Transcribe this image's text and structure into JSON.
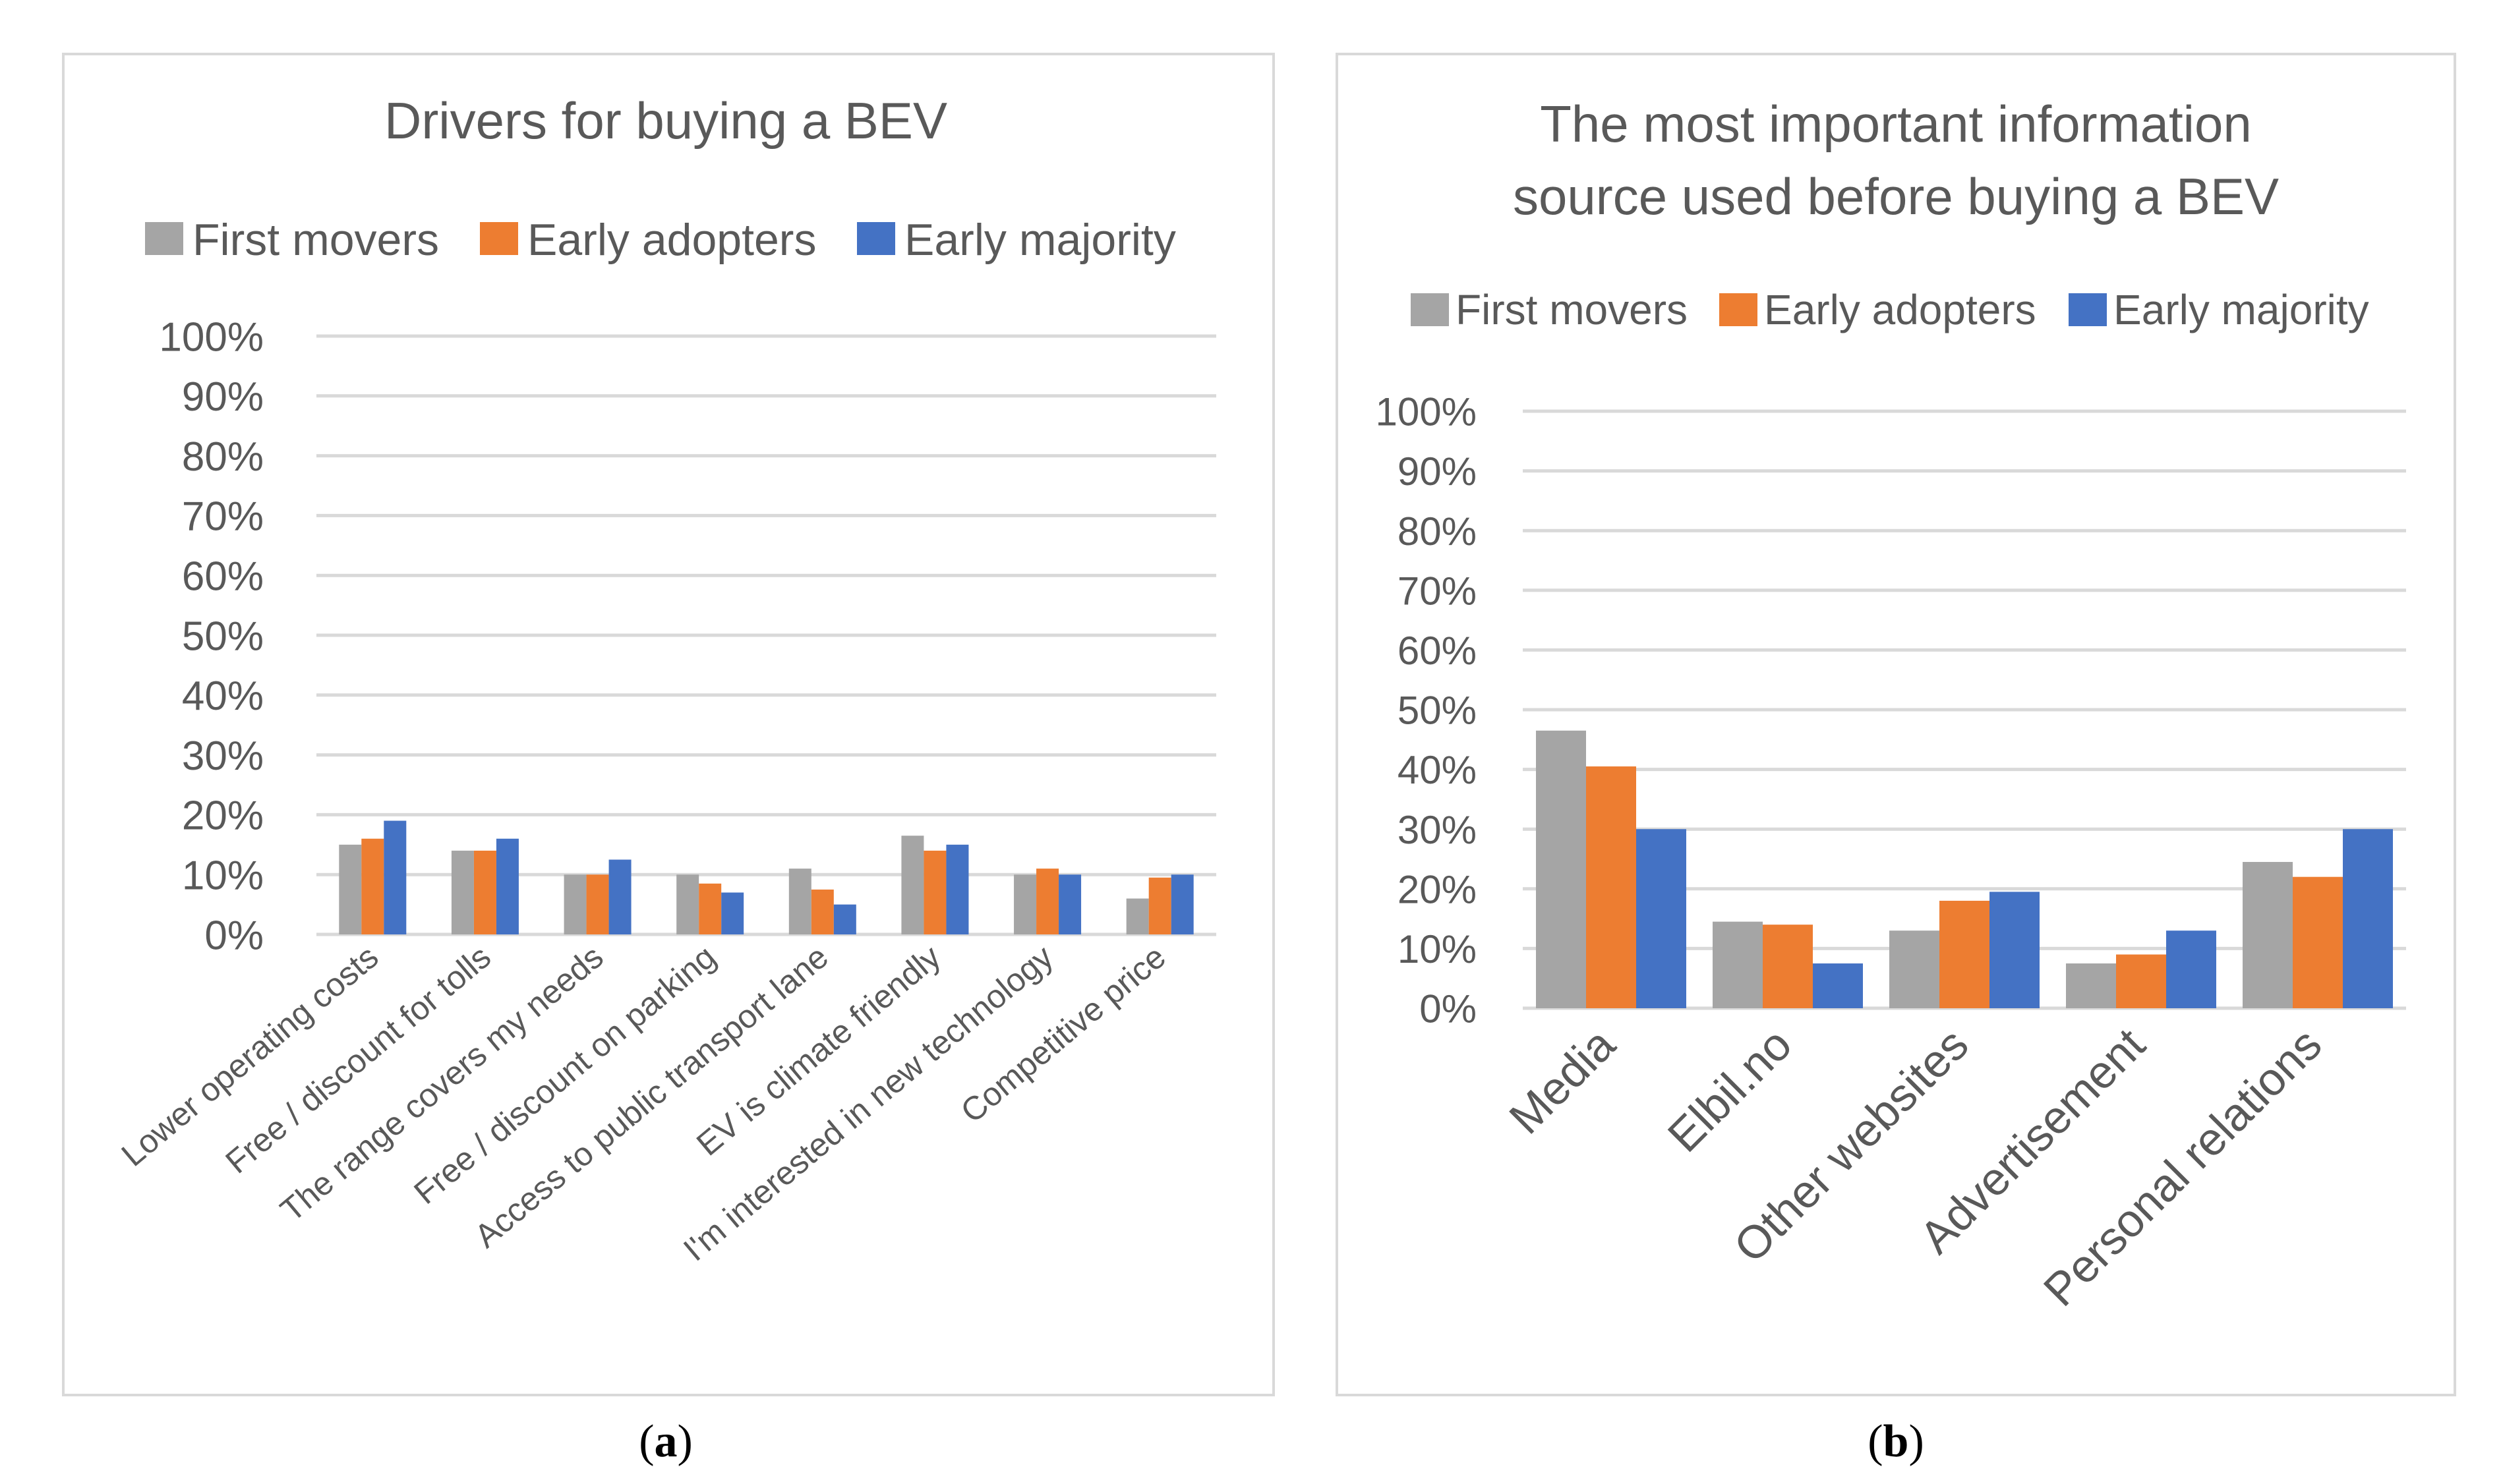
{
  "panels": [
    {
      "label_open": "(",
      "label_letter": "a",
      "label_close": ")",
      "title_lines": [
        "Drivers for buying a BEV"
      ]
    },
    {
      "label_open": "(",
      "label_letter": "b",
      "label_close": ")",
      "title_lines": [
        "The most important information",
        "source used before buying a BEV"
      ]
    }
  ],
  "chart_data": [
    {
      "type": "bar",
      "title": "Drivers for buying a BEV",
      "xlabel": "",
      "ylabel": "",
      "ylim": [
        0,
        100
      ],
      "yticks": [
        "0%",
        "10%",
        "20%",
        "30%",
        "40%",
        "50%",
        "60%",
        "70%",
        "80%",
        "90%",
        "100%"
      ],
      "grid": true,
      "legend_position": "top",
      "categories": [
        "Lower operating costs",
        "Free / discount for tolls",
        "The range covers my needs",
        "Free /  discount on parking",
        "Access to public transport lane",
        "EV is climate friendly",
        "I'm interested in new technology",
        "Competitive price"
      ],
      "series": [
        {
          "name": "First movers",
          "color": "#a5a5a5",
          "values": [
            15,
            14,
            10,
            10,
            11,
            16.5,
            10,
            6
          ]
        },
        {
          "name": "Early adopters",
          "color": "#ed7d31",
          "values": [
            16,
            14,
            10,
            8.5,
            7.5,
            14,
            11,
            9.5
          ]
        },
        {
          "name": "Early majority",
          "color": "#4472c4",
          "values": [
            19,
            16,
            12.5,
            7,
            5,
            15,
            10,
            10
          ]
        }
      ]
    },
    {
      "type": "bar",
      "title": "The most important information source used before buying a BEV",
      "xlabel": "",
      "ylabel": "",
      "ylim": [
        0,
        100
      ],
      "yticks": [
        "0%",
        "10%",
        "20%",
        "30%",
        "40%",
        "50%",
        "60%",
        "70%",
        "80%",
        "90%",
        "100%"
      ],
      "grid": true,
      "legend_position": "top",
      "categories": [
        "Media",
        "Elbil.no",
        "Other websites",
        "Advertisement",
        "Personal relations"
      ],
      "series": [
        {
          "name": "First movers",
          "color": "#a5a5a5",
          "values": [
            46.5,
            14.5,
            13,
            7.5,
            24.5
          ]
        },
        {
          "name": "Early adopters",
          "color": "#ed7d31",
          "values": [
            40.5,
            14,
            18,
            9,
            22
          ]
        },
        {
          "name": "Early majority",
          "color": "#4472c4",
          "values": [
            30,
            7.5,
            19.5,
            13,
            30
          ]
        }
      ]
    }
  ]
}
